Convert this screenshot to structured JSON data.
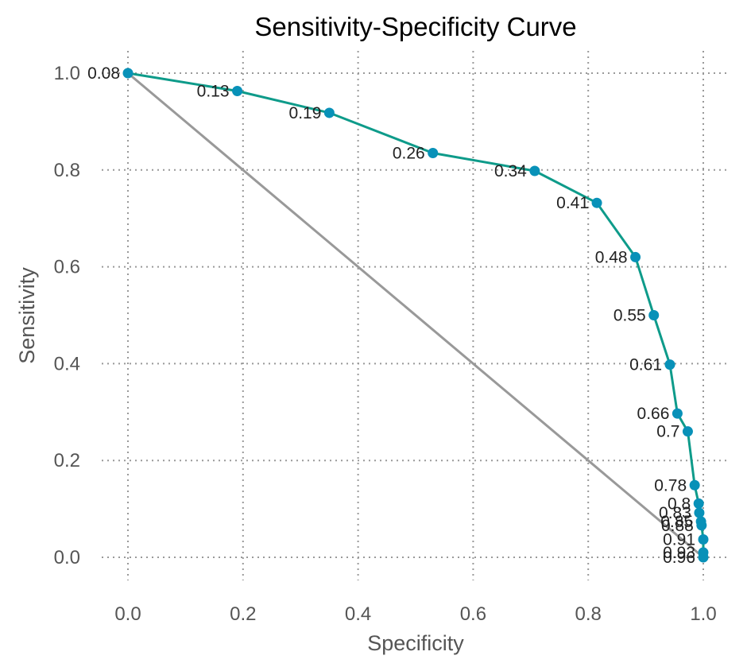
{
  "chart_data": {
    "type": "line",
    "title": "Sensitivity-Specificity Curve",
    "xlabel": "Specificity",
    "ylabel": "Sensitivity",
    "xlim": [
      -0.045,
      1.05
    ],
    "ylim": [
      -0.05,
      1.05
    ],
    "x_ticks": [
      "0.0",
      "0.2",
      "0.4",
      "0.6",
      "0.8",
      "1.0"
    ],
    "y_ticks": [
      "0.0",
      "0.2",
      "0.4",
      "0.6",
      "0.8",
      "1.0"
    ],
    "grid": true,
    "legend": "none",
    "series": [
      {
        "points": [
          {
            "x": 0.0,
            "y": 1.0,
            "label": "0.08"
          },
          {
            "x": 0.19,
            "y": 0.963,
            "label": "0.13"
          },
          {
            "x": 0.35,
            "y": 0.918,
            "label": "0.19"
          },
          {
            "x": 0.53,
            "y": 0.835,
            "label": "0.26"
          },
          {
            "x": 0.707,
            "y": 0.798,
            "label": "0.34"
          },
          {
            "x": 0.815,
            "y": 0.732,
            "label": "0.41"
          },
          {
            "x": 0.882,
            "y": 0.62,
            "label": "0.48"
          },
          {
            "x": 0.914,
            "y": 0.5,
            "label": "0.55"
          },
          {
            "x": 0.942,
            "y": 0.398,
            "label": "0.61"
          },
          {
            "x": 0.955,
            "y": 0.297,
            "label": "0.66"
          },
          {
            "x": 0.973,
            "y": 0.26,
            "label": "0.7"
          },
          {
            "x": 0.985,
            "y": 0.149,
            "label": "0.78"
          },
          {
            "x": 0.992,
            "y": 0.111,
            "label": "0.8"
          },
          {
            "x": 0.993,
            "y": 0.092,
            "label": "0.83"
          },
          {
            "x": 0.996,
            "y": 0.074,
            "label": "0.85"
          },
          {
            "x": 0.997,
            "y": 0.066,
            "label": "0.88"
          },
          {
            "x": 1.0,
            "y": 0.037,
            "label": "0.91"
          },
          {
            "x": 1.0,
            "y": 0.01,
            "label": "0.93"
          },
          {
            "x": 1.0,
            "y": 0.0,
            "label": "0.96"
          }
        ]
      }
    ],
    "reference_line": {
      "x": [
        0.0,
        1.0
      ],
      "y": [
        1.0,
        0.0
      ]
    },
    "colors": {
      "curve": "#0e9b8a",
      "points": "#0891b8",
      "reference": "#999999"
    }
  }
}
